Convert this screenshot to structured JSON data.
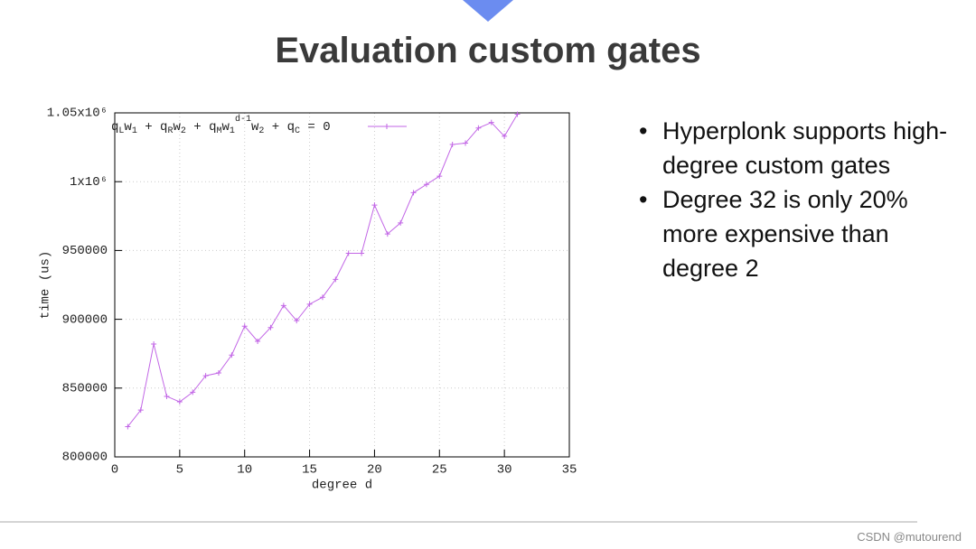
{
  "slide": {
    "title": "Evaluation custom gates",
    "bullets": [
      "Hyperplonk supports high-degree custom gates",
      "Degree 32 is only 20% more expensive than degree 2"
    ]
  },
  "watermark": "CSDN @mutourend",
  "chart_data": {
    "type": "line",
    "xlabel": "degree d",
    "ylabel": "time (us)",
    "x": [
      1,
      2,
      3,
      4,
      5,
      6,
      7,
      8,
      9,
      10,
      11,
      12,
      13,
      14,
      15,
      16,
      17,
      18,
      19,
      20,
      21,
      22,
      23,
      24,
      25,
      26,
      27,
      28,
      29,
      30,
      31
    ],
    "series": [
      {
        "name": "qLw1 + qRw2 + qMw1d-1w2 + qC = 0",
        "color": "#c266e6",
        "values": [
          822000,
          834000,
          882000,
          844000,
          840000,
          847000,
          859000,
          861000,
          874000,
          895000,
          884000,
          894000,
          910000,
          899000,
          911000,
          916000,
          929000,
          948000,
          948000,
          983000,
          962000,
          970000,
          992000,
          998000,
          1004000,
          1027000,
          1028000,
          1039000,
          1043000,
          1033000,
          1049000
        ]
      }
    ],
    "xlim": [
      0,
      35
    ],
    "xticks": [
      0,
      5,
      10,
      15,
      20,
      25,
      30,
      35
    ],
    "ylim": [
      800000,
      1050000
    ],
    "yticks": [
      800000,
      850000,
      900000,
      950000,
      {
        "value": 1000000,
        "label": "1x10⁶"
      },
      {
        "value": 1050000,
        "label": "1.05x10⁶"
      }
    ],
    "grid": true,
    "legend": "top-left"
  }
}
